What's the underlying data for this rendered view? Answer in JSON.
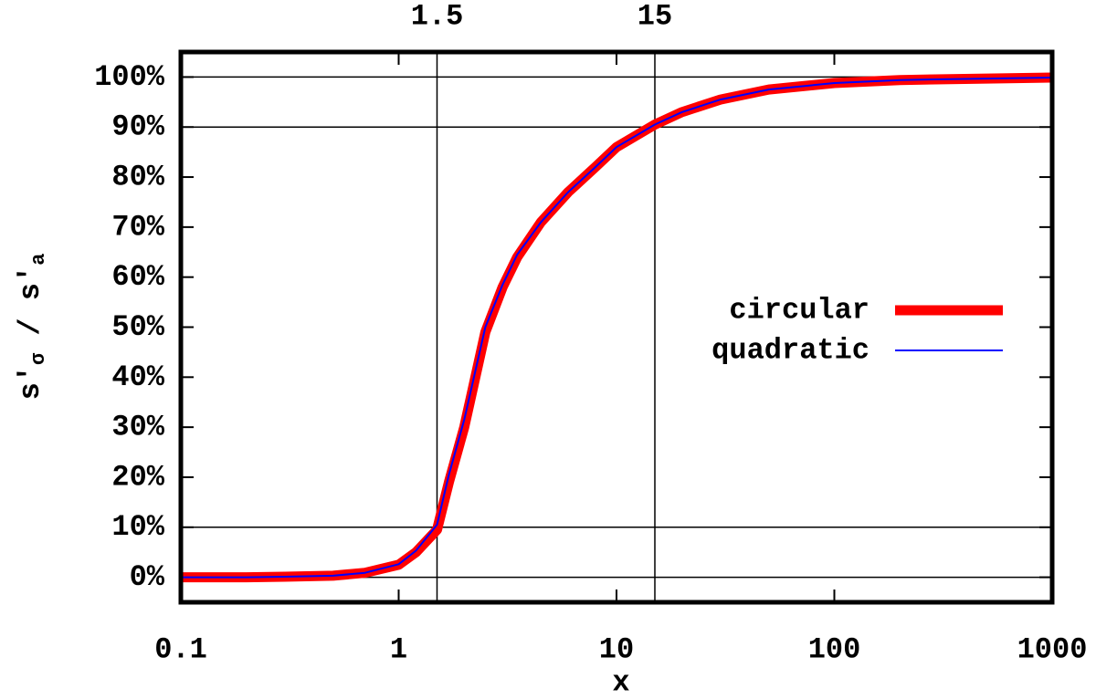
{
  "chart_data": {
    "type": "line",
    "xlabel": "x",
    "ylabel": [
      "s′",
      "σ",
      " / s′",
      "a"
    ],
    "xscale": "log",
    "xlim": [
      0.1,
      1000
    ],
    "xticks": [
      0.1,
      1,
      10,
      100,
      1000
    ],
    "x2ticks": [
      1.5,
      15
    ],
    "ylim": [
      -5,
      105
    ],
    "yticks": [
      {
        "value": 0,
        "label": "0%"
      },
      {
        "value": 10,
        "label": "10%"
      },
      {
        "value": 20,
        "label": "20%"
      },
      {
        "value": 30,
        "label": "30%"
      },
      {
        "value": 40,
        "label": "40%"
      },
      {
        "value": 50,
        "label": "50%"
      },
      {
        "value": 60,
        "label": "60%"
      },
      {
        "value": 70,
        "label": "70%"
      },
      {
        "value": 80,
        "label": "80%"
      },
      {
        "value": 90,
        "label": "90%"
      },
      {
        "value": 100,
        "label": "100%"
      }
    ],
    "hlines": [
      0,
      10,
      90,
      100
    ],
    "legend": "right",
    "x": [
      0.1,
      0.2,
      0.3,
      0.5,
      0.7,
      1,
      1.2,
      1.5,
      1.7,
      2,
      2.5,
      3,
      3.5,
      4.5,
      6,
      8,
      10,
      15,
      20,
      30,
      50,
      100,
      200,
      500,
      1000
    ],
    "series": [
      {
        "name": "circular",
        "color": "#ff0000",
        "width": 11,
        "values": [
          0,
          0,
          0.1,
          0.3,
          0.9,
          2.5,
          5,
          9.5,
          19,
          30,
          49,
          58,
          64,
          71,
          77,
          82,
          86,
          90.5,
          93,
          95.5,
          97.5,
          98.8,
          99.4,
          99.7,
          99.9
        ]
      },
      {
        "name": "quadratic",
        "color": "#0000ff",
        "width": 2,
        "values": [
          0,
          0,
          0.1,
          0.3,
          0.9,
          2.6,
          5.3,
          10.5,
          20.5,
          31.5,
          50,
          58.5,
          64.5,
          71,
          77,
          82,
          86,
          90.5,
          93,
          95.5,
          97.5,
          98.8,
          99.4,
          99.7,
          99.9
        ]
      }
    ]
  }
}
